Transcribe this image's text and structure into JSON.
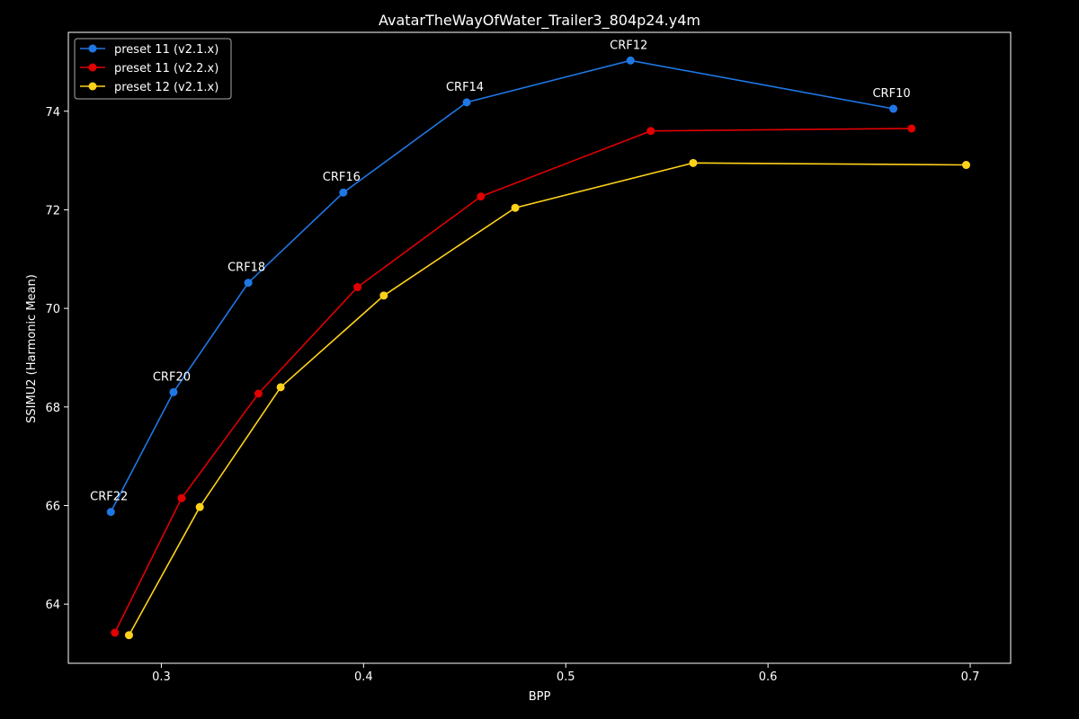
{
  "chart_data": {
    "type": "line",
    "title": "AvatarTheWayOfWater_Trailer3_804p24.y4m",
    "xlabel": "BPP",
    "ylabel": "SSIMU2 (Harmonic Mean)",
    "xlim": [
      0.254,
      0.72
    ],
    "ylim": [
      62.8,
      75.6
    ],
    "xticks": [
      0.3,
      0.4,
      0.5,
      0.6,
      0.7
    ],
    "xtick_labels": [
      "0.3",
      "0.4",
      "0.5",
      "0.6",
      "0.7"
    ],
    "yticks": [
      64,
      66,
      68,
      70,
      72,
      74
    ],
    "ytick_labels": [
      "64",
      "66",
      "68",
      "70",
      "72",
      "74"
    ],
    "grid": false,
    "legend_position": "top-left",
    "series": [
      {
        "name": "preset 11 (v2.1.x)",
        "color": "#1f77e6",
        "x": [
          0.275,
          0.306,
          0.343,
          0.39,
          0.451,
          0.532,
          0.662
        ],
        "y": [
          65.87,
          68.3,
          70.52,
          72.35,
          74.18,
          75.03,
          74.05
        ]
      },
      {
        "name": "preset 11 (v2.2.x)",
        "color": "#e00000",
        "x": [
          0.277,
          0.31,
          0.348,
          0.397,
          0.458,
          0.542,
          0.671
        ],
        "y": [
          63.42,
          66.15,
          68.27,
          70.43,
          72.27,
          73.6,
          73.65
        ]
      },
      {
        "name": "preset 12 (v2.1.x)",
        "color": "#ffd21a",
        "x": [
          0.284,
          0.319,
          0.359,
          0.41,
          0.475,
          0.563,
          0.698
        ],
        "y": [
          63.37,
          65.97,
          68.4,
          70.26,
          72.04,
          72.95,
          72.91
        ]
      }
    ],
    "annotations": [
      {
        "text": "CRF22",
        "x": 0.275,
        "y": 65.87
      },
      {
        "text": "CRF20",
        "x": 0.306,
        "y": 68.3
      },
      {
        "text": "CRF18",
        "x": 0.343,
        "y": 70.52
      },
      {
        "text": "CRF16",
        "x": 0.39,
        "y": 72.35
      },
      {
        "text": "CRF14",
        "x": 0.451,
        "y": 74.18
      },
      {
        "text": "CRF12",
        "x": 0.532,
        "y": 75.03
      },
      {
        "text": "CRF10",
        "x": 0.662,
        "y": 74.05
      }
    ]
  }
}
